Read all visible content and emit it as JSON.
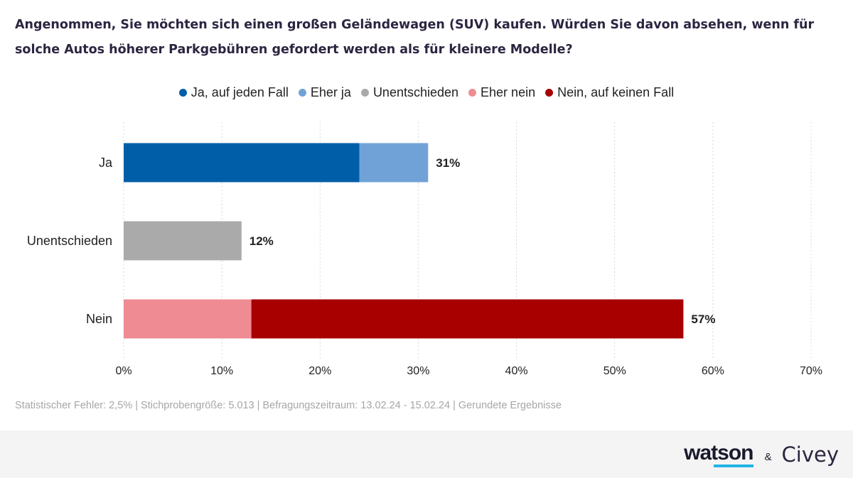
{
  "title": "Angenommen, Sie möchten sich einen großen Geländewagen (SUV) kaufen. Würden Sie davon absehen, wenn für solche Autos höherer Parkgebühren gefordert werden als für kleinere Modelle?",
  "legend": [
    {
      "label": "Ja, auf jeden Fall",
      "color": "#005ea8"
    },
    {
      "label": "Eher ja",
      "color": "#70a2d8"
    },
    {
      "label": "Unentschieden",
      "color": "#aaaaaa"
    },
    {
      "label": "Eher nein",
      "color": "#ef8b93"
    },
    {
      "label": "Nein, auf keinen Fall",
      "color": "#a80000"
    }
  ],
  "chart_data": {
    "type": "bar",
    "orientation": "horizontal",
    "stacked": true,
    "title": "Angenommen, Sie möchten sich einen großen Geländewagen (SUV) kaufen. Würden Sie davon absehen, wenn für solche Autos höherer Parkgebühren gefordert werden als für kleinere Modelle?",
    "categories": [
      "Ja",
      "Unentschieden",
      "Nein"
    ],
    "series": [
      {
        "name": "Ja, auf jeden Fall",
        "color": "#005ea8",
        "values": [
          24,
          0,
          0
        ]
      },
      {
        "name": "Eher ja",
        "color": "#70a2d8",
        "values": [
          7,
          0,
          0
        ]
      },
      {
        "name": "Unentschieden",
        "color": "#aaaaaa",
        "values": [
          0,
          12,
          0
        ]
      },
      {
        "name": "Eher nein",
        "color": "#ef8b93",
        "values": [
          0,
          0,
          13
        ]
      },
      {
        "name": "Nein, auf keinen Fall",
        "color": "#a80000",
        "values": [
          0,
          0,
          44
        ]
      }
    ],
    "totals": [
      "31%",
      "12%",
      "57%"
    ],
    "xlim": [
      0,
      70
    ],
    "xticks": [
      0,
      10,
      20,
      30,
      40,
      50,
      60,
      70
    ],
    "xtick_labels": [
      "0%",
      "10%",
      "20%",
      "30%",
      "40%",
      "50%",
      "60%",
      "70%"
    ],
    "xlabel": "",
    "ylabel": "",
    "grid": "vertical-dotted",
    "legend_position": "top-center"
  },
  "footnote": "Statistischer Fehler: 2,5% | Stichprobengröße: 5.013 | Befragungszeitraum: 13.02.24 - 15.02.24 | Gerundete Ergebnisse",
  "brands": {
    "primary": "watson",
    "separator": "&",
    "secondary": "Civey"
  }
}
